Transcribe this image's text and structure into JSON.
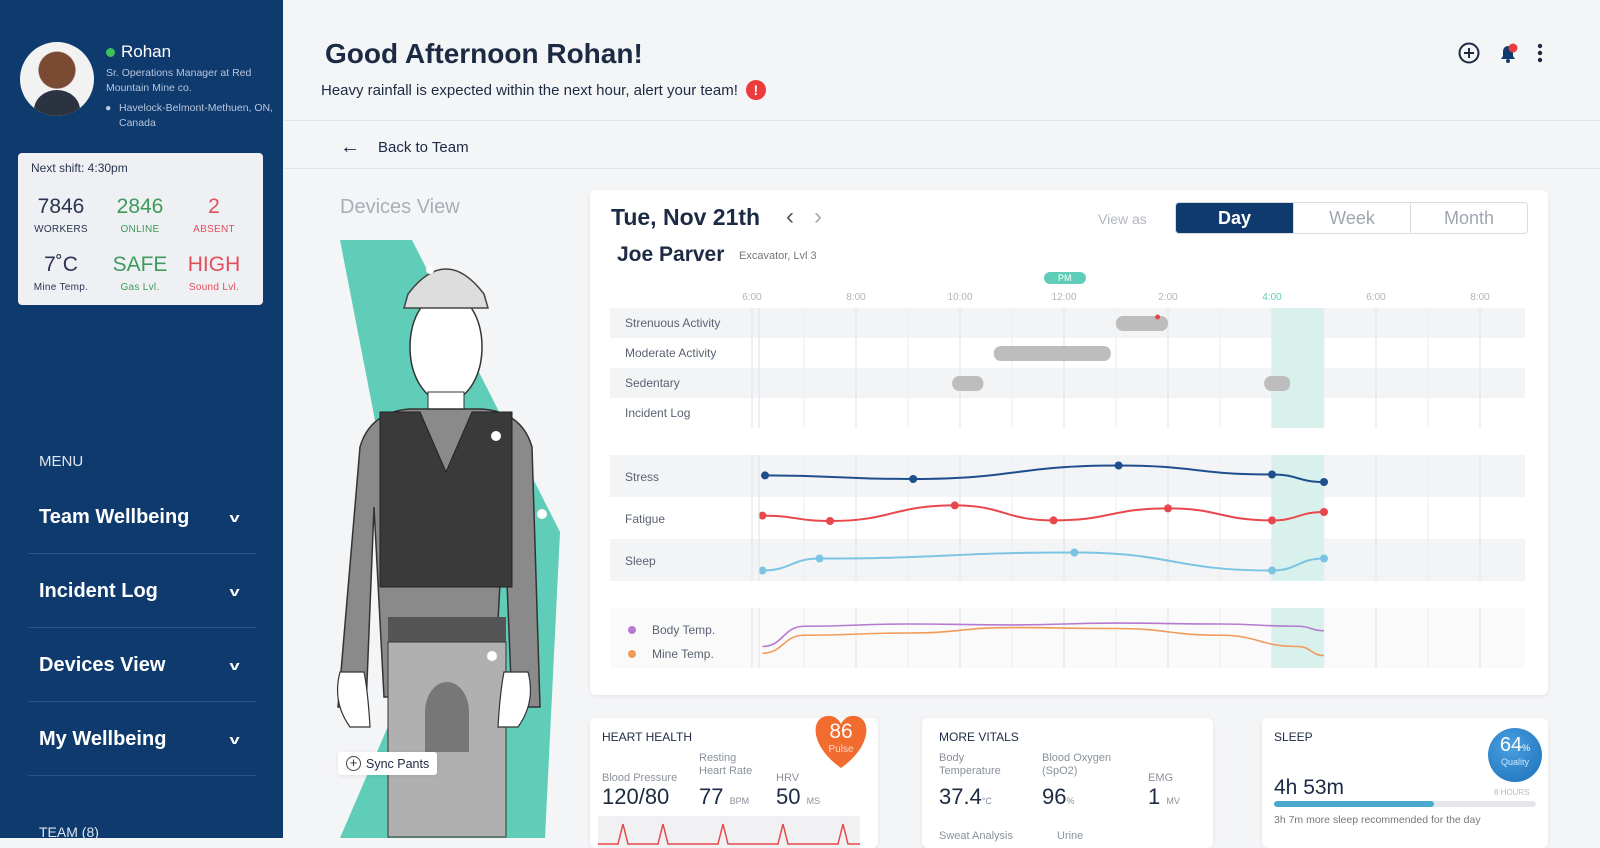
{
  "user": {
    "name": "Rohan",
    "role": "Sr. Operations Manager at Red Mountain Mine co.",
    "location": "Havelock-Belmont-Methuen, ON, Canada",
    "status": "online"
  },
  "stats": {
    "next_shift": "Next shift: 4:30pm",
    "workers": {
      "value": "7846",
      "label": "WORKERS"
    },
    "online": {
      "value": "2846",
      "label": "ONLINE"
    },
    "absent": {
      "value": "2",
      "label": "ABSENT"
    },
    "temp": {
      "value": "7˚C",
      "label": "Mine Temp."
    },
    "gas": {
      "value": "SAFE",
      "label": "Gas Lvl."
    },
    "sound": {
      "value": "HIGH",
      "label": "Sound Lvl."
    }
  },
  "menu": {
    "heading": "MENU",
    "items": [
      {
        "label": "Team Wellbeing"
      },
      {
        "label": "Incident Log"
      },
      {
        "label": "Devices View"
      },
      {
        "label": "My Wellbeing"
      }
    ],
    "team_heading": "TEAM (8)"
  },
  "header": {
    "greeting": "Good Afternoon Rohan!",
    "alert": "Heavy rainfall is expected within the next hour, alert your team!",
    "alert_icon": "!",
    "icons": [
      "add-circle-icon",
      "bell-icon",
      "more-vertical-icon"
    ]
  },
  "nav": {
    "back": "Back to Team"
  },
  "devices": {
    "title": "Devices View",
    "sync": "Sync Pants"
  },
  "schedule": {
    "date": "Tue, Nov 21th",
    "worker": "Joe Parver",
    "worker_role": "Excavator, Lvl 3",
    "view_as": "View as",
    "views": [
      "Day",
      "Week",
      "Month"
    ],
    "active_view": "Day",
    "pm_marker": "PM"
  },
  "colors": {
    "navy": "#0e3a6e",
    "teal": "#5fcdb8",
    "stress": "#1f4e8c",
    "fatigue": "#e8474b",
    "sleep": "#7cc4e4",
    "body_temp": "#b47ad0",
    "mine_temp": "#f29a5a"
  },
  "chart_data": {
    "type": "timeline",
    "x_ticks": [
      "6:00",
      "8:00",
      "10:00",
      "12:00",
      "2:00",
      "4:00",
      "6:00",
      "8:00"
    ],
    "x_range_hours": [
      6,
      20
    ],
    "highlight_hours": [
      16,
      17
    ],
    "activity_rows": [
      {
        "label": "Strenuous Activity",
        "bars": [
          [
            13.0,
            14.0
          ]
        ],
        "alerts": [
          13.8
        ]
      },
      {
        "label": "Moderate Activity",
        "bars": [
          [
            10.65,
            12.9
          ]
        ]
      },
      {
        "label": "Sedentary",
        "bars": [
          [
            9.85,
            10.45
          ],
          [
            15.85,
            16.35
          ]
        ]
      },
      {
        "label": "Incident Log",
        "bars": []
      }
    ],
    "trend_rows": [
      {
        "label": "Stress",
        "color": "#1f4e8c",
        "points": [
          [
            6.25,
            52
          ],
          [
            9.1,
            40
          ],
          [
            13.05,
            85
          ],
          [
            16,
            55
          ],
          [
            17,
            30
          ]
        ]
      },
      {
        "label": "Fatigue",
        "color": "#e8474b",
        "points": [
          [
            6.2,
            58
          ],
          [
            7.5,
            40
          ],
          [
            9.9,
            92
          ],
          [
            11.8,
            42
          ],
          [
            14,
            82
          ],
          [
            16,
            42
          ],
          [
            17,
            70
          ]
        ]
      },
      {
        "label": "Sleep",
        "color": "#7cc4e4",
        "points": [
          [
            6.2,
            15
          ],
          [
            7.3,
            55
          ],
          [
            12.2,
            75
          ],
          [
            16,
            15
          ],
          [
            17,
            55
          ]
        ]
      }
    ],
    "temp_series": [
      {
        "name": "Body Temp.",
        "color": "#b47ad0",
        "points": [
          [
            6.2,
            30
          ],
          [
            7,
            75
          ],
          [
            9,
            80
          ],
          [
            11,
            78
          ],
          [
            13,
            82
          ],
          [
            15,
            80
          ],
          [
            16.5,
            75
          ],
          [
            17,
            65
          ]
        ]
      },
      {
        "name": "Mine Temp.",
        "color": "#f29a5a",
        "points": [
          [
            6.2,
            15
          ],
          [
            7,
            55
          ],
          [
            9,
            60
          ],
          [
            11,
            72
          ],
          [
            13,
            70
          ],
          [
            15,
            55
          ],
          [
            16.5,
            30
          ],
          [
            17,
            10
          ]
        ]
      }
    ]
  },
  "heart": {
    "title": "HEART HEALTH",
    "pulse": "86",
    "pulse_label": "Pulse",
    "bp_label": "Blood Pressure",
    "bp": "120/80",
    "rhr_label": "Resting Heart Rate",
    "rhr": "77",
    "rhr_unit": "BPM",
    "hrv_label": "HRV",
    "hrv": "50",
    "hrv_unit": "MS"
  },
  "vitals": {
    "title": "MORE VITALS",
    "temp_label": "Body Temperature",
    "temp": "37.4",
    "temp_unit": "°C",
    "spo2_label": "Blood Oxygen (SpO2)",
    "spo2": "96",
    "spo2_unit": "%",
    "emg_label": "EMG",
    "emg": "1",
    "emg_unit": "MV",
    "sweat_label": "Sweat Analysis",
    "urine_label": "Urine"
  },
  "sleep": {
    "title": "SLEEP",
    "quality": "64",
    "quality_unit": "%",
    "quality_label": "Quality",
    "duration": "4h 53m",
    "target": "8 HOURS",
    "progress_pct": 61,
    "recommend": "3h 7m more sleep recommended for the day"
  }
}
